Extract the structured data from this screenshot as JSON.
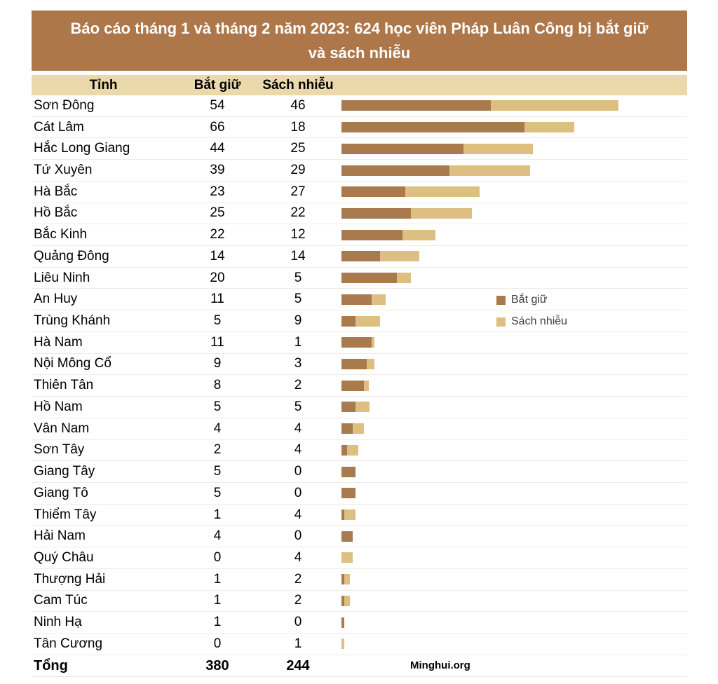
{
  "title": "Báo cáo tháng 1 và tháng 2 năm 2023: 624 học viên Pháp Luân Công bị bắt giữ và sách nhiễu",
  "source": "Minghui.org",
  "columns": {
    "province": "Tỉnh",
    "arrested": "Bắt giữ",
    "harassed": "Sách nhiễu"
  },
  "total_row": {
    "label": "Tổng",
    "arrested": "380",
    "harassed": "244"
  },
  "legend": [
    {
      "label": "Bắt giữ",
      "color": "#a97a4e"
    },
    {
      "label": "Sách nhiễu",
      "color": "#ddbf82"
    }
  ],
  "colors": {
    "banner_bg": "#ae774a",
    "banner_text": "#ffffff",
    "header_bg": "#ebd8ab",
    "arrested_bar": "#a97a4e",
    "harassed_bar": "#ddbf82",
    "row_separator": "#f3ebe2"
  },
  "chart_data": {
    "type": "bar",
    "orientation": "horizontal-stacked",
    "title": "Báo cáo tháng 1 và tháng 2 năm 2023: 624 học viên Pháp Luân Công bị bắt giữ và sách nhiễu",
    "categories": [
      "Sơn Đông",
      "Cát Lâm",
      "Hắc Long Giang",
      "Tứ Xuyên",
      "Hà Bắc",
      "Hồ Bắc",
      "Bắc Kinh",
      "Quảng Đông",
      "Liêu Ninh",
      "An Huy",
      "Trùng Khánh",
      "Hà Nam",
      "Nội Mông Cổ",
      "Thiên Tân",
      "Hồ Nam",
      "Vân Nam",
      "Sơn Tây",
      "Giang Tây",
      "Giang Tô",
      "Thiểm Tây",
      "Hải Nam",
      "Quý Châu",
      "Thượng Hải",
      "Cam Túc",
      "Ninh Hạ",
      "Tân Cương"
    ],
    "series": [
      {
        "name": "Bắt giữ",
        "color": "#a97a4e",
        "values": [
          54,
          66,
          44,
          39,
          23,
          25,
          22,
          14,
          20,
          11,
          5,
          11,
          9,
          8,
          5,
          4,
          2,
          5,
          5,
          1,
          4,
          0,
          1,
          1,
          1,
          0
        ]
      },
      {
        "name": "Sách nhiễu",
        "color": "#ddbf82",
        "values": [
          46,
          18,
          25,
          29,
          27,
          22,
          12,
          14,
          5,
          5,
          9,
          1,
          3,
          2,
          5,
          4,
          4,
          0,
          0,
          4,
          0,
          4,
          2,
          2,
          0,
          1
        ]
      }
    ],
    "totals": {
      "arrested": 380,
      "harassed": 244,
      "grand_total": 624
    },
    "xlim": [
      0,
      100
    ],
    "legend_position": "middle-right",
    "grid": false
  }
}
